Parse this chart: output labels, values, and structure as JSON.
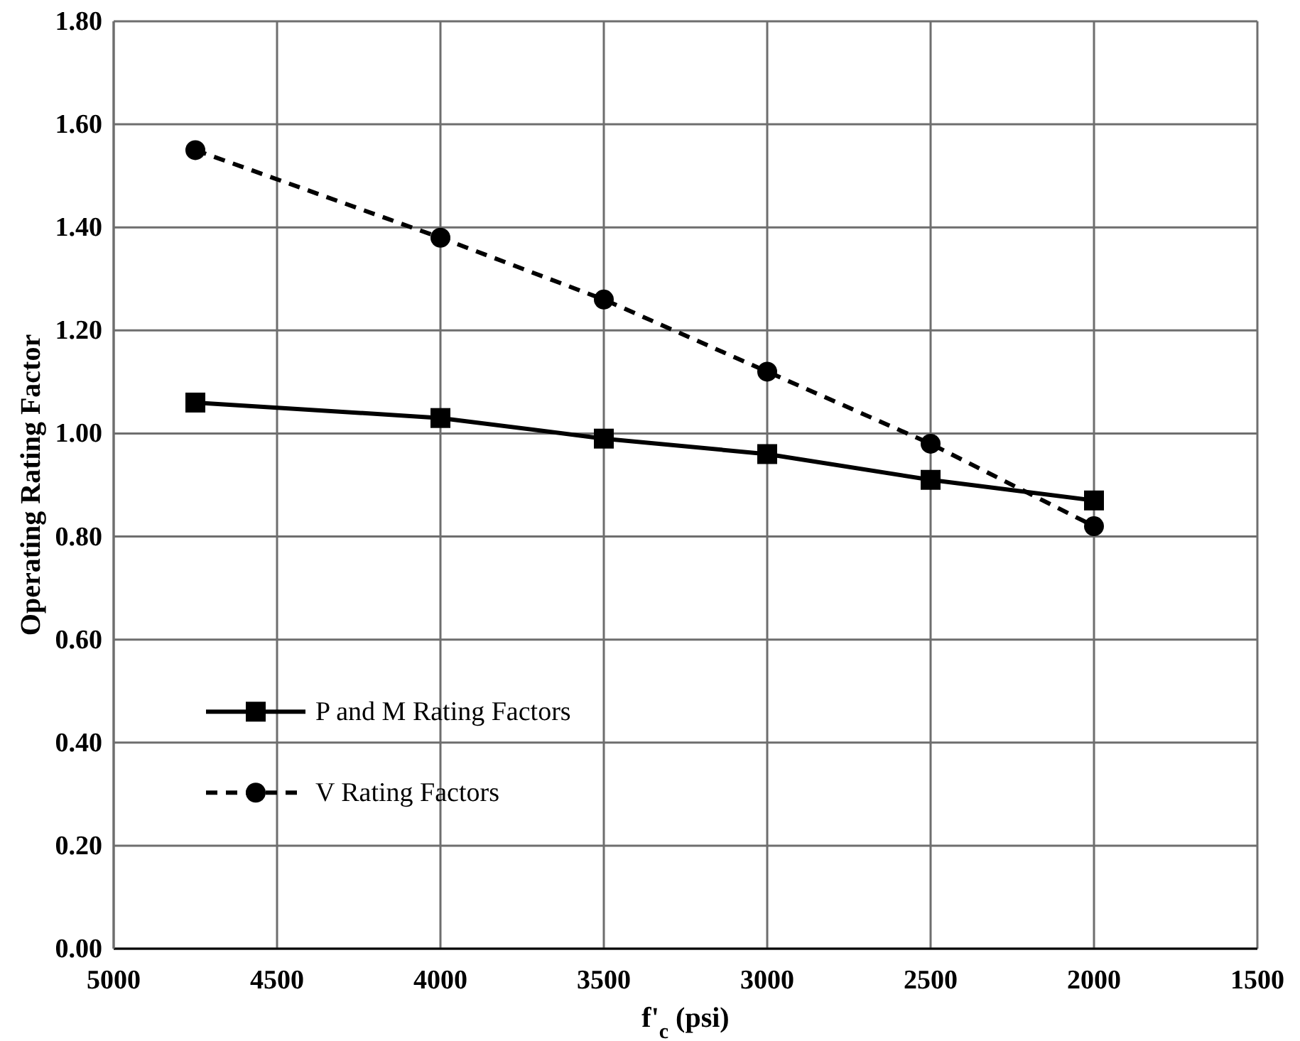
{
  "chart_data": {
    "type": "line",
    "xlabel": "f'$_{c}$ (psi)",
    "ylabel": "Operating Rating Factor",
    "x": [
      4750,
      4000,
      3500,
      3000,
      2500,
      2000
    ],
    "series": [
      {
        "name": "P and M Rating Factors",
        "color": "#000000",
        "values": [
          1.06,
          1.03,
          0.99,
          0.96,
          0.91,
          0.87
        ],
        "marker": "square",
        "line_style": "solid"
      },
      {
        "name": "V Rating Factors",
        "color": "#000000",
        "values": [
          1.55,
          1.38,
          1.26,
          1.12,
          0.98,
          0.82
        ],
        "marker": "circle",
        "line_style": "dashed"
      }
    ],
    "xlim": [
      5000,
      1500
    ],
    "xticks": [
      5000,
      4500,
      4000,
      3500,
      3000,
      2500,
      2000,
      1500
    ],
    "ylim": [
      0,
      1.8
    ],
    "yticks": [
      {
        "value": 0,
        "label": "0.00"
      },
      {
        "value": 0.2,
        "label": "0.20"
      },
      {
        "value": 0.4,
        "label": "0.40"
      },
      {
        "value": 0.6,
        "label": "0.60"
      },
      {
        "value": 0.8,
        "label": "0.80"
      },
      {
        "value": 1,
        "label": "1.00"
      },
      {
        "value": 1.2,
        "label": "1.20"
      },
      {
        "value": 1.4,
        "label": "1.40"
      },
      {
        "value": 1.6,
        "label": "1.60"
      },
      {
        "value": 1.8,
        "label": "1.80"
      }
    ],
    "grid": true,
    "legend": "bottom left"
  }
}
